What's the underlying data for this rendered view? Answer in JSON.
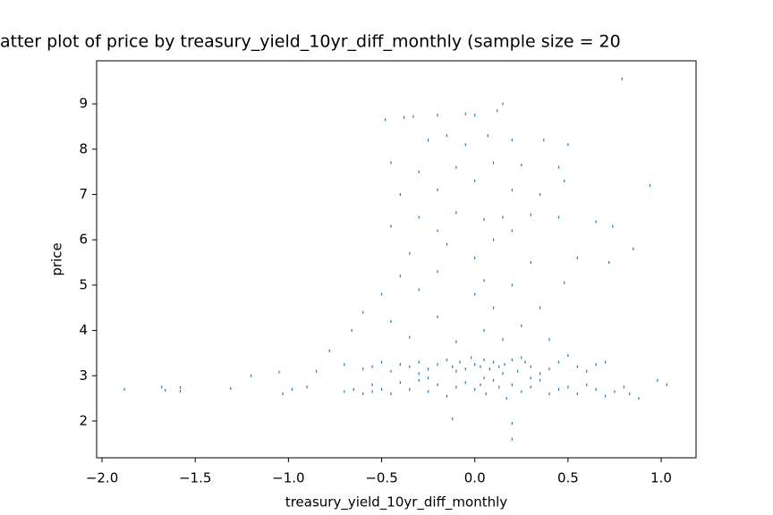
{
  "chart_data": {
    "type": "scatter",
    "title": "atter plot of price by treasury_yield_10yr_diff_monthly (sample size = 20",
    "x_label": "treasury_yield_10yr_diff_monthly",
    "y_label": "price",
    "color": "#1f77b4",
    "xlim": [
      -2.029,
      1.187
    ],
    "ylim": [
      1.19,
      9.95
    ],
    "xticks": [
      {
        "value": -2.0,
        "label": "−2.0"
      },
      {
        "value": -1.5,
        "label": "−1.5"
      },
      {
        "value": -1.0,
        "label": "−1.0"
      },
      {
        "value": -0.5,
        "label": "−0.5"
      },
      {
        "value": 0.0,
        "label": "0.0"
      },
      {
        "value": 0.5,
        "label": "0.5"
      },
      {
        "value": 1.0,
        "label": "1.0"
      }
    ],
    "yticks": [
      2,
      3,
      4,
      5,
      6,
      7,
      8,
      9
    ],
    "x": [
      -1.88,
      -1.68,
      -1.66,
      -1.58,
      -1.58,
      -1.31,
      -1.2,
      -1.05,
      -1.03,
      -0.98,
      -0.9,
      -0.85,
      -0.78,
      -0.7,
      -0.66,
      -0.6,
      -0.55,
      0.79,
      0.94,
      0.85,
      0.98,
      1.03,
      0.88,
      0.2,
      0.2,
      -0.12,
      0.65,
      0.74,
      0.72,
      -0.48,
      -0.38,
      -0.33,
      -0.2,
      -0.05,
      0.0,
      0.12,
      0.15,
      -0.15,
      -0.25,
      0.07,
      -0.05,
      0.2,
      0.37,
      0.5,
      -0.45,
      -0.3,
      -0.1,
      0.1,
      0.25,
      0.45,
      -0.4,
      -0.2,
      0.0,
      0.2,
      0.35,
      0.48,
      -0.3,
      -0.1,
      0.05,
      0.15,
      0.3,
      0.45,
      -0.45,
      -0.2,
      0.1,
      0.2,
      -0.35,
      -0.15,
      0.0,
      0.3,
      0.55,
      -0.4,
      -0.2,
      0.05,
      0.2,
      0.48,
      -0.5,
      -0.3,
      0.0,
      0.1,
      0.35,
      -0.45,
      -0.2,
      0.05,
      0.25,
      -0.35,
      -0.1,
      0.15,
      0.4,
      -0.6,
      -0.55,
      -0.5,
      -0.45,
      -0.4,
      -0.35,
      -0.3,
      -0.25,
      -0.2,
      -0.15,
      -0.12,
      -0.08,
      -0.05,
      -0.02,
      0.0,
      0.03,
      0.05,
      0.08,
      0.1,
      0.13,
      0.16,
      0.2,
      0.23,
      0.27,
      0.3,
      0.35,
      0.4,
      0.45,
      0.5,
      0.55,
      0.6,
      0.65,
      0.7,
      -0.1,
      0.15,
      -0.3,
      0.25,
      -0.7,
      -0.65,
      -0.6,
      -0.55,
      -0.5,
      -0.45,
      -0.4,
      -0.35,
      -0.3,
      -0.25,
      -0.2,
      -0.15,
      -0.1,
      -0.05,
      0.0,
      0.03,
      0.06,
      0.1,
      0.13,
      0.17,
      0.2,
      0.25,
      0.3,
      0.35,
      0.4,
      0.45,
      0.5,
      0.55,
      0.6,
      0.65,
      0.7,
      0.75,
      0.8,
      0.83,
      -0.25,
      0.05,
      0.3
    ],
    "values": [
      2.7,
      2.75,
      2.68,
      2.74,
      2.66,
      2.72,
      3.0,
      3.08,
      2.6,
      2.7,
      2.75,
      3.1,
      3.55,
      3.25,
      4.0,
      4.4,
      2.65,
      9.55,
      7.2,
      5.8,
      2.9,
      2.8,
      2.5,
      1.6,
      1.95,
      2.05,
      6.4,
      6.3,
      5.5,
      8.65,
      8.7,
      8.72,
      8.75,
      8.78,
      8.75,
      8.85,
      9.0,
      8.3,
      8.2,
      8.3,
      8.1,
      8.2,
      8.2,
      8.1,
      7.7,
      7.5,
      7.6,
      7.7,
      7.65,
      7.6,
      7.0,
      7.1,
      7.3,
      7.1,
      7.0,
      7.3,
      6.5,
      6.6,
      6.45,
      6.5,
      6.55,
      6.5,
      6.3,
      6.2,
      6.0,
      6.2,
      5.7,
      5.9,
      5.6,
      5.5,
      5.6,
      5.2,
      5.3,
      5.1,
      5.0,
      5.05,
      4.8,
      4.9,
      4.8,
      4.5,
      4.5,
      4.2,
      4.3,
      4.0,
      4.1,
      3.85,
      3.75,
      3.8,
      3.8,
      3.15,
      3.2,
      3.3,
      3.1,
      3.25,
      3.2,
      3.3,
      3.15,
      3.25,
      3.35,
      3.2,
      3.3,
      3.15,
      3.4,
      3.25,
      3.2,
      3.35,
      3.15,
      3.3,
      3.2,
      3.25,
      3.35,
      3.1,
      3.3,
      3.2,
      3.05,
      3.15,
      3.3,
      3.45,
      3.2,
      3.1,
      3.25,
      3.3,
      3.1,
      3.05,
      3.05,
      3.4,
      2.65,
      2.7,
      2.6,
      2.8,
      2.7,
      2.6,
      2.85,
      2.7,
      2.9,
      2.65,
      2.8,
      2.55,
      2.75,
      2.85,
      2.7,
      2.8,
      2.6,
      2.9,
      2.75,
      2.5,
      2.8,
      2.65,
      2.75,
      2.9,
      2.6,
      2.7,
      2.75,
      2.6,
      2.8,
      2.7,
      2.55,
      2.65,
      2.75,
      2.6,
      2.95,
      2.95,
      2.95
    ]
  }
}
